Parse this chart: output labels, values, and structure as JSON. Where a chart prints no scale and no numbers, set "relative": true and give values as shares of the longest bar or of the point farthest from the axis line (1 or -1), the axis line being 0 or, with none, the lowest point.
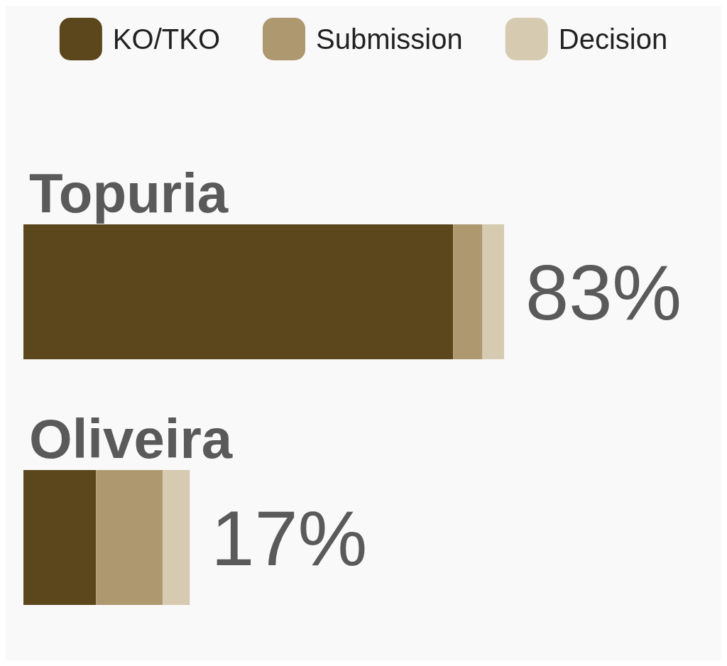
{
  "chart_data": {
    "type": "bar",
    "orientation": "horizontal",
    "stacked": true,
    "relative": true,
    "legend": "top",
    "categories": [
      "Topuria",
      "Oliveira"
    ],
    "series": [
      {
        "name": "KO/TKO",
        "color": "#5c461b",
        "values": [
          0.894,
          0.151
        ]
      },
      {
        "name": "Submission",
        "color": "#ae9870",
        "values": [
          0.061,
          0.139
        ]
      },
      {
        "name": "Decision",
        "color": "#d6cab0",
        "values": [
          0.045,
          0.056
        ]
      }
    ],
    "annotations": [
      "83%",
      "17%"
    ]
  }
}
